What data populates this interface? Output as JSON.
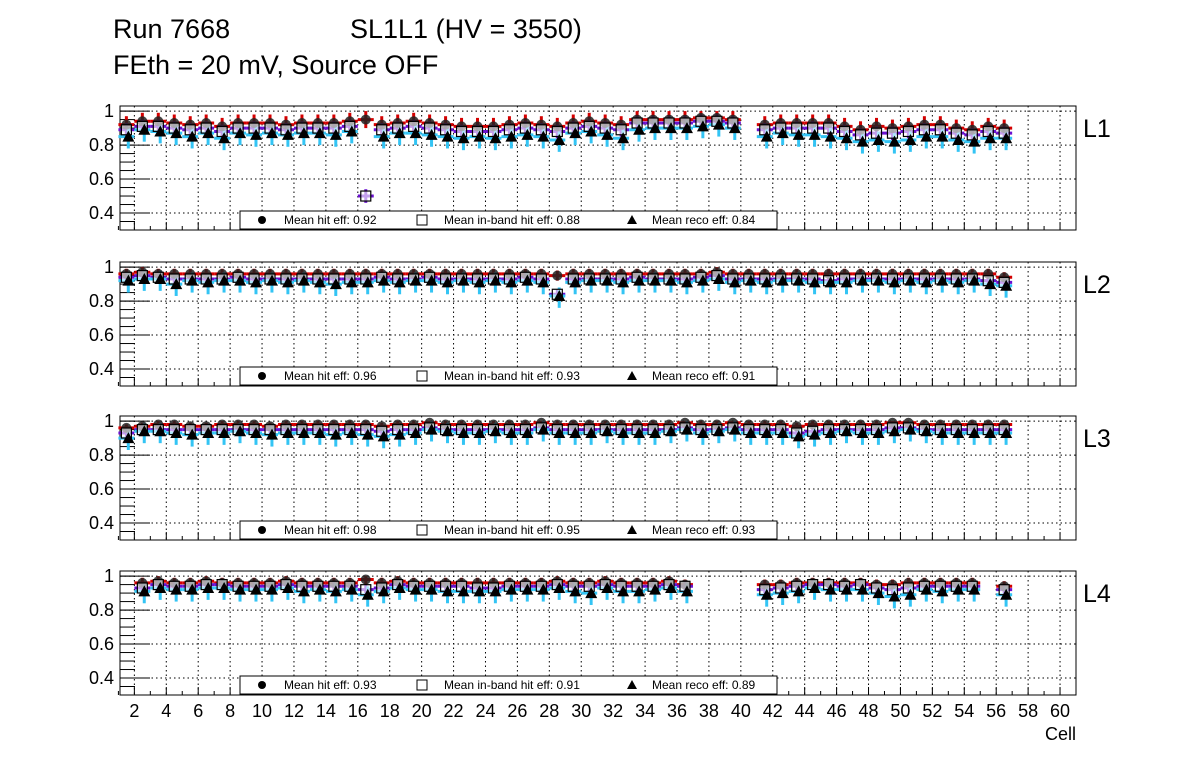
{
  "header": {
    "run": "Run 7668",
    "chamber": "SL1L1 (HV = 3550)",
    "conditions": "FEth = 20 mV, Source OFF"
  },
  "colors": {
    "hit": "#d40000",
    "inband": "#6a10d0",
    "reco": "#33c4f4",
    "marker": "#000000"
  },
  "chart_data": [
    {
      "type": "scatter",
      "label": "L1",
      "xlim": [
        1.1,
        61
      ],
      "ylim": [
        0.3,
        1.03
      ],
      "yticks": [
        {
          "v": 1,
          "t": "1"
        },
        {
          "v": 0.8,
          "t": "0.8"
        },
        {
          "v": 0.6,
          "t": "0.6"
        },
        {
          "v": 0.4,
          "t": "0.4"
        }
      ],
      "xlabel": "",
      "xticks": [],
      "legend": [
        "Mean hit  eff: 0.92",
        "Mean in-band hit eff: 0.88",
        "Mean reco eff: 0.84"
      ],
      "series": [
        {
          "name": "hit",
          "err": 0.05,
          "values": [
            0.92,
            0.94,
            0.94,
            0.93,
            0.92,
            0.93,
            0.91,
            0.93,
            0.93,
            0.93,
            0.92,
            0.93,
            0.93,
            0.93,
            0.94,
            0.95,
            0.92,
            0.93,
            0.94,
            0.93,
            0.92,
            0.91,
            0.91,
            0.91,
            0.92,
            0.93,
            0.92,
            0.91,
            0.93,
            0.94,
            0.93,
            0.92,
            0.95,
            0.95,
            0.95,
            0.95,
            0.96,
            0.96,
            0.95,
            null,
            0.92,
            0.93,
            0.93,
            0.93,
            0.93,
            0.91,
            0.89,
            0.91,
            0.9,
            0.91,
            0.92,
            0.92,
            0.9,
            0.89,
            0.91,
            0.9
          ]
        },
        {
          "name": "inband",
          "err": 0.04,
          "values": [
            0.89,
            0.91,
            0.91,
            0.9,
            0.89,
            0.9,
            0.88,
            0.9,
            0.9,
            0.9,
            0.89,
            0.9,
            0.9,
            0.9,
            0.91,
            0.5,
            0.89,
            0.9,
            0.91,
            0.9,
            0.89,
            0.88,
            0.88,
            0.88,
            0.89,
            0.9,
            0.89,
            0.88,
            0.9,
            0.91,
            0.9,
            0.89,
            0.93,
            0.93,
            0.93,
            0.93,
            0.94,
            0.94,
            0.93,
            null,
            0.89,
            0.9,
            0.9,
            0.9,
            0.9,
            0.88,
            0.86,
            0.87,
            0.87,
            0.88,
            0.89,
            0.89,
            0.87,
            0.86,
            0.88,
            0.87
          ]
        },
        {
          "name": "reco",
          "err": 0.05,
          "values": [
            0.85,
            0.89,
            0.88,
            0.87,
            0.85,
            0.87,
            0.84,
            0.87,
            0.86,
            0.87,
            0.86,
            0.87,
            0.87,
            0.86,
            0.88,
            null,
            0.85,
            0.87,
            0.87,
            0.86,
            0.85,
            0.84,
            0.85,
            0.84,
            0.85,
            0.86,
            0.85,
            0.83,
            0.87,
            0.88,
            0.86,
            0.84,
            0.89,
            0.9,
            0.9,
            0.9,
            0.91,
            0.92,
            0.9,
            null,
            0.85,
            0.87,
            0.86,
            0.86,
            0.85,
            0.84,
            0.82,
            0.83,
            0.82,
            0.83,
            0.85,
            0.85,
            0.83,
            0.82,
            0.84,
            0.84
          ]
        }
      ]
    },
    {
      "type": "scatter",
      "label": "L2",
      "xlim": [
        1.1,
        61
      ],
      "ylim": [
        0.3,
        1.03
      ],
      "yticks": [
        {
          "v": 1,
          "t": "1"
        },
        {
          "v": 0.8,
          "t": "0.8"
        },
        {
          "v": 0.6,
          "t": "0.6"
        },
        {
          "v": 0.4,
          "t": "0.4"
        }
      ],
      "xlabel": "",
      "xticks": [],
      "legend": [
        "Mean hit  eff: 0.96",
        "Mean in-band hit eff: 0.93",
        "Mean reco eff: 0.91"
      ],
      "series": [
        {
          "name": "hit",
          "err": 0.03,
          "values": [
            0.96,
            0.97,
            0.96,
            0.96,
            0.96,
            0.96,
            0.96,
            0.96,
            0.96,
            0.96,
            0.96,
            0.96,
            0.96,
            0.96,
            0.96,
            0.96,
            0.96,
            0.96,
            0.96,
            0.96,
            0.96,
            0.96,
            0.96,
            0.96,
            0.96,
            0.96,
            0.96,
            0.95,
            0.96,
            0.96,
            0.96,
            0.96,
            0.96,
            0.96,
            0.96,
            0.96,
            0.96,
            0.97,
            0.96,
            0.96,
            0.96,
            0.96,
            0.96,
            0.96,
            0.96,
            0.96,
            0.96,
            0.96,
            0.96,
            0.96,
            0.96,
            0.96,
            0.96,
            0.96,
            0.96,
            0.94
          ]
        },
        {
          "name": "inband",
          "err": 0.03,
          "values": [
            0.94,
            0.95,
            0.94,
            0.93,
            0.93,
            0.93,
            0.93,
            0.94,
            0.93,
            0.93,
            0.93,
            0.93,
            0.93,
            0.93,
            0.93,
            0.93,
            0.94,
            0.93,
            0.93,
            0.94,
            0.93,
            0.93,
            0.93,
            0.93,
            0.93,
            0.94,
            0.93,
            0.84,
            0.93,
            0.93,
            0.93,
            0.93,
            0.94,
            0.93,
            0.93,
            0.93,
            0.94,
            0.95,
            0.93,
            0.93,
            0.93,
            0.93,
            0.93,
            0.93,
            0.92,
            0.93,
            0.93,
            0.93,
            0.93,
            0.93,
            0.93,
            0.93,
            0.93,
            0.93,
            0.92,
            0.91
          ]
        },
        {
          "name": "reco",
          "err": 0.05,
          "values": [
            0.92,
            0.93,
            0.93,
            0.9,
            0.92,
            0.91,
            0.92,
            0.92,
            0.91,
            0.92,
            0.91,
            0.92,
            0.91,
            0.9,
            0.91,
            0.91,
            0.92,
            0.91,
            0.92,
            0.92,
            0.91,
            0.92,
            0.91,
            0.92,
            0.91,
            0.92,
            0.91,
            0.83,
            0.91,
            0.92,
            0.92,
            0.91,
            0.92,
            0.92,
            0.92,
            0.91,
            0.92,
            0.93,
            0.91,
            0.92,
            0.91,
            0.92,
            0.92,
            0.91,
            0.91,
            0.91,
            0.92,
            0.92,
            0.91,
            0.92,
            0.91,
            0.92,
            0.91,
            0.92,
            0.9,
            0.89
          ]
        }
      ]
    },
    {
      "type": "scatter",
      "label": "L3",
      "xlim": [
        1.1,
        61
      ],
      "ylim": [
        0.3,
        1.03
      ],
      "yticks": [
        {
          "v": 1,
          "t": "1"
        },
        {
          "v": 0.8,
          "t": "0.8"
        },
        {
          "v": 0.6,
          "t": "0.6"
        },
        {
          "v": 0.4,
          "t": "0.4"
        }
      ],
      "xlabel": "",
      "xticks": [],
      "legend": [
        "Mean hit  eff: 0.98",
        "Mean in-band hit eff: 0.95",
        "Mean reco eff: 0.93"
      ],
      "series": [
        {
          "name": "hit",
          "err": 0.02,
          "values": [
            0.96,
            0.97,
            0.98,
            0.98,
            0.97,
            0.97,
            0.98,
            0.98,
            0.98,
            0.97,
            0.98,
            0.98,
            0.98,
            0.98,
            0.98,
            0.98,
            0.97,
            0.98,
            0.98,
            0.99,
            0.98,
            0.98,
            0.98,
            0.98,
            0.98,
            0.98,
            0.99,
            0.98,
            0.98,
            0.98,
            0.98,
            0.98,
            0.98,
            0.98,
            0.98,
            0.99,
            0.98,
            0.98,
            0.99,
            0.98,
            0.98,
            0.98,
            0.97,
            0.98,
            0.98,
            0.98,
            0.98,
            0.98,
            0.99,
            0.99,
            0.98,
            0.98,
            0.98,
            0.98,
            0.98,
            0.98
          ]
        },
        {
          "name": "inband",
          "err": 0.03,
          "values": [
            0.93,
            0.95,
            0.95,
            0.95,
            0.95,
            0.95,
            0.95,
            0.95,
            0.95,
            0.95,
            0.95,
            0.95,
            0.95,
            0.95,
            0.95,
            0.95,
            0.94,
            0.95,
            0.95,
            0.96,
            0.95,
            0.95,
            0.95,
            0.95,
            0.95,
            0.95,
            0.96,
            0.95,
            0.95,
            0.95,
            0.95,
            0.95,
            0.95,
            0.95,
            0.95,
            0.96,
            0.95,
            0.95,
            0.96,
            0.95,
            0.95,
            0.95,
            0.93,
            0.94,
            0.95,
            0.95,
            0.95,
            0.95,
            0.96,
            0.96,
            0.95,
            0.95,
            0.95,
            0.95,
            0.95,
            0.95
          ]
        },
        {
          "name": "reco",
          "err": 0.05,
          "values": [
            0.9,
            0.94,
            0.94,
            0.93,
            0.92,
            0.93,
            0.93,
            0.94,
            0.93,
            0.92,
            0.93,
            0.93,
            0.93,
            0.92,
            0.93,
            0.92,
            0.91,
            0.92,
            0.93,
            0.95,
            0.94,
            0.93,
            0.93,
            0.94,
            0.93,
            0.93,
            0.95,
            0.93,
            0.93,
            0.93,
            0.94,
            0.93,
            0.93,
            0.93,
            0.94,
            0.95,
            0.93,
            0.94,
            0.95,
            0.93,
            0.93,
            0.93,
            0.91,
            0.92,
            0.93,
            0.94,
            0.93,
            0.93,
            0.94,
            0.95,
            0.94,
            0.93,
            0.93,
            0.93,
            0.93,
            0.93
          ]
        }
      ]
    },
    {
      "type": "scatter",
      "label": "L4",
      "xlim": [
        1.1,
        61
      ],
      "ylim": [
        0.3,
        1.03
      ],
      "yticks": [
        {
          "v": 1,
          "t": "1"
        },
        {
          "v": 0.8,
          "t": "0.8"
        },
        {
          "v": 0.6,
          "t": "0.6"
        },
        {
          "v": 0.4,
          "t": "0.4"
        }
      ],
      "xlabel": "Cell",
      "xticks": [
        "2",
        "4",
        "6",
        "8",
        "10",
        "12",
        "14",
        "16",
        "18",
        "20",
        "22",
        "24",
        "26",
        "28",
        "30",
        "32",
        "34",
        "36",
        "38",
        "40",
        "42",
        "44",
        "46",
        "48",
        "50",
        "52",
        "54",
        "56",
        "58",
        "60"
      ],
      "legend": [
        "Mean hit  eff: 0.93",
        "Mean in-band hit eff: 0.91",
        "Mean reco eff: 0.89"
      ],
      "series": [
        {
          "name": "hit",
          "err": 0.03,
          "values": [
            null,
            0.96,
            0.97,
            0.96,
            0.96,
            0.97,
            0.96,
            0.96,
            0.96,
            0.96,
            0.97,
            0.96,
            0.96,
            0.96,
            0.96,
            0.98,
            0.96,
            0.97,
            0.96,
            0.96,
            0.96,
            0.96,
            0.96,
            0.96,
            0.96,
            0.96,
            0.96,
            0.97,
            0.96,
            0.96,
            0.97,
            0.96,
            0.96,
            0.96,
            0.97,
            0.95,
            null,
            null,
            null,
            null,
            0.95,
            0.95,
            0.96,
            0.96,
            0.96,
            0.96,
            0.96,
            0.95,
            0.95,
            0.96,
            0.96,
            0.96,
            0.96,
            0.96,
            null,
            0.94
          ]
        },
        {
          "name": "inband",
          "err": 0.03,
          "values": [
            null,
            0.93,
            0.95,
            0.94,
            0.94,
            0.95,
            0.95,
            0.94,
            0.94,
            0.94,
            0.95,
            0.94,
            0.94,
            0.94,
            0.94,
            0.92,
            0.93,
            0.95,
            0.94,
            0.94,
            0.94,
            0.94,
            0.93,
            0.93,
            0.94,
            0.94,
            0.94,
            0.95,
            0.94,
            0.94,
            0.95,
            0.94,
            0.94,
            0.94,
            0.95,
            0.94,
            null,
            null,
            null,
            null,
            0.92,
            0.93,
            0.94,
            0.95,
            0.95,
            0.94,
            0.95,
            0.93,
            0.92,
            0.93,
            0.94,
            0.94,
            0.94,
            0.94,
            null,
            0.92
          ]
        },
        {
          "name": "reco",
          "err": 0.05,
          "values": [
            null,
            0.91,
            0.93,
            0.92,
            0.92,
            0.93,
            0.93,
            0.92,
            0.92,
            0.92,
            0.93,
            0.91,
            0.92,
            0.91,
            0.92,
            0.89,
            0.91,
            0.93,
            0.92,
            0.92,
            0.91,
            0.91,
            0.91,
            0.91,
            0.92,
            0.92,
            0.92,
            0.93,
            0.91,
            0.9,
            0.93,
            0.91,
            0.91,
            0.92,
            0.93,
            0.91,
            null,
            null,
            null,
            null,
            0.89,
            0.9,
            0.91,
            0.93,
            0.92,
            0.92,
            0.92,
            0.9,
            0.88,
            0.89,
            0.92,
            0.91,
            0.92,
            0.92,
            null,
            0.89
          ]
        }
      ]
    }
  ]
}
